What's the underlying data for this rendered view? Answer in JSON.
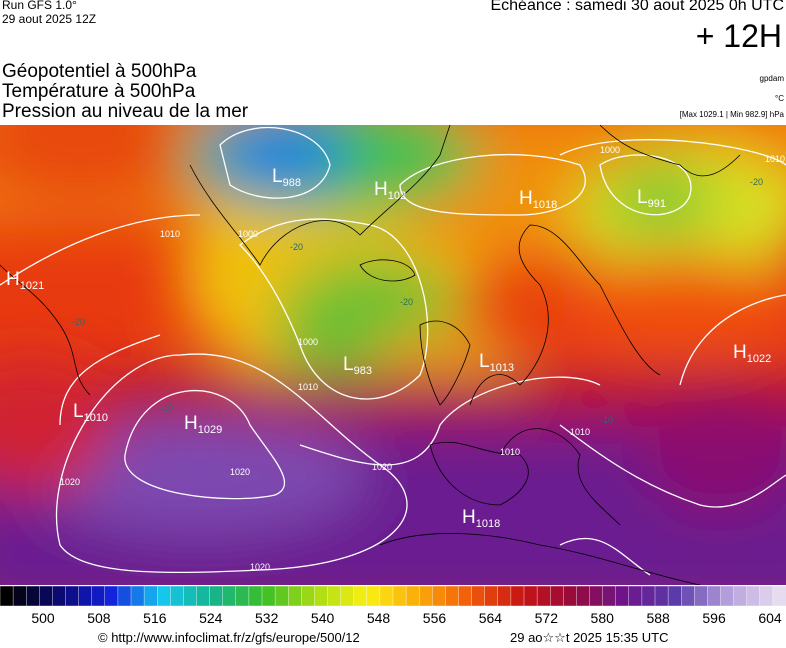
{
  "header": {
    "run": "Run GFS 1.0°",
    "date": "29 aout 2025 12Z",
    "echeance": "Echéance : samedi 30 aout 2025 0h UTC",
    "lead": "+ 12H",
    "titles": [
      "Géopotentiel à 500hPa",
      "Température à 500hPa",
      "Pression au niveau de la mer"
    ],
    "unit_gp": "gpdam",
    "unit_temp": "°C",
    "range": "[Max 1029.1 | Min 982.9] hPa"
  },
  "map": {
    "centers": [
      {
        "letter": "L",
        "value": "988"
      },
      {
        "letter": "H",
        "value": "102"
      },
      {
        "letter": "H",
        "value": "1018"
      },
      {
        "letter": "L",
        "value": "991"
      },
      {
        "letter": "H",
        "value": "1021"
      },
      {
        "letter": "L",
        "value": "983"
      },
      {
        "letter": "L",
        "value": "1013"
      },
      {
        "letter": "H",
        "value": "1022"
      },
      {
        "letter": "L",
        "value": "1010"
      },
      {
        "letter": "H",
        "value": "1029"
      },
      {
        "letter": "H",
        "value": "1018"
      }
    ],
    "isobar_labels": [
      "1000",
      "1010",
      "1020",
      "1020",
      "1020",
      "1020",
      "1000",
      "1010",
      "1010",
      "1010",
      "1010",
      "1000"
    ],
    "temp_labels": [
      "-20",
      "-20",
      "-20",
      "-10",
      "-10",
      "-20"
    ]
  },
  "colorbar": {
    "labels": [
      500,
      508,
      516,
      524,
      532,
      540,
      548,
      556,
      564,
      572,
      580,
      588,
      596,
      604
    ]
  },
  "footer": {
    "source": "© http://www.infoclimat.fr/z/gfs/europe/500/12",
    "stamp": "29 ao☆☆t 2025 15:35 UTC"
  }
}
